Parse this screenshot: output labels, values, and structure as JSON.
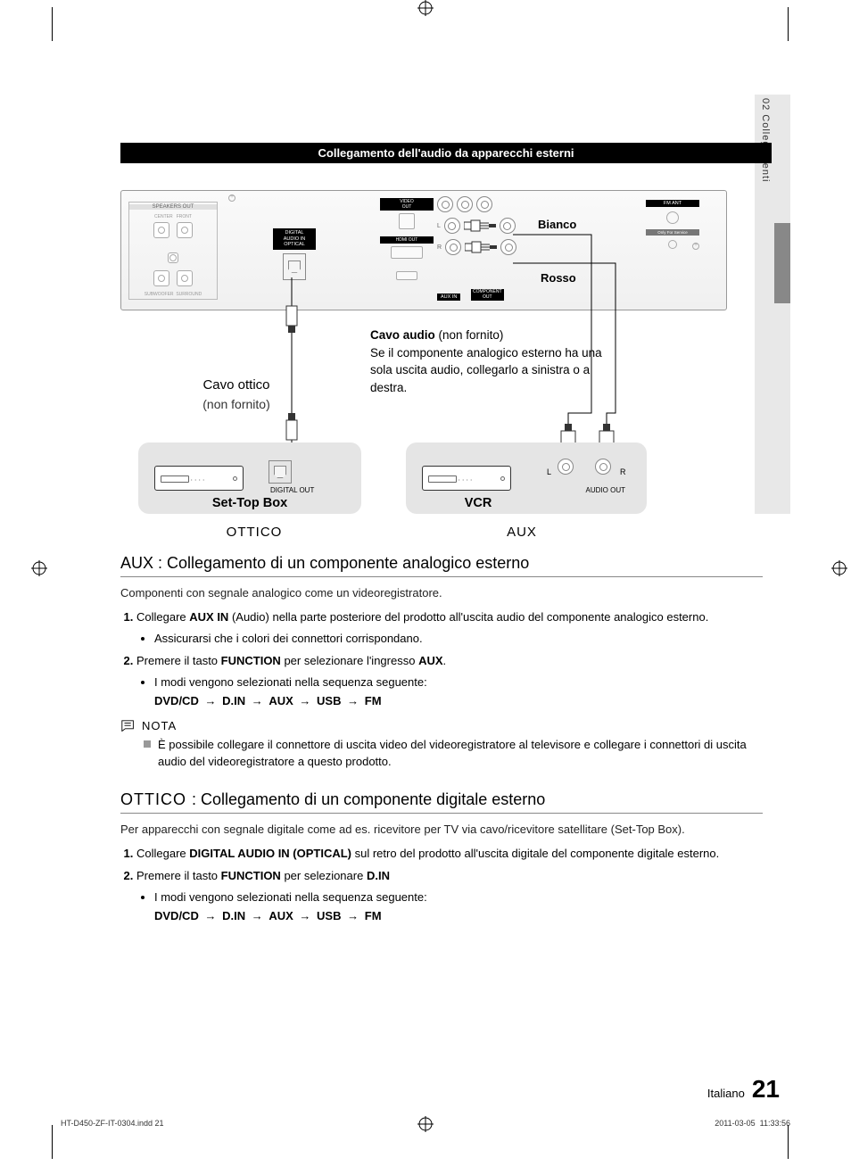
{
  "page": {
    "side_tab": "02  Collegamenti",
    "section_title": "Collegamento dell'audio da apparecchi esterni",
    "footer_lang": "Italiano",
    "footer_num": "21",
    "indd_file": "HT-D450-ZF-IT-0304.indd   21",
    "indd_date": "2011-03-05   ‎ 11:33:56"
  },
  "panel": {
    "speakers_label": "SPEAKERS OUT",
    "sp_center": "CENTER",
    "sp_front": "FRONT",
    "sp_sub": "SUBWOOFER",
    "sp_surr": "SURROUND",
    "optical_label": "DIGITAL\nAUDIO IN",
    "optical_sub": "OPTICAL",
    "video_out": "VIDEO\nOUT",
    "hdmi_out": "HDMI OUT",
    "aux_in": "AUX IN",
    "comp_out": "COMPONENT\nOUT",
    "fm_ant": "FM ANT",
    "service": "Only For Service",
    "color_white": "Bianco",
    "color_red": "Rosso"
  },
  "diagram": {
    "cavo_ottico": "Cavo ottico",
    "not_supplied": "(non fornito)",
    "cavo_audio_title": "Cavo audio",
    "cavo_audio_note": "(non fornito)",
    "cavo_audio_body": "Se il componente analogico esterno ha una sola uscita audio, collegarlo a sinistra o a destra.",
    "stb": "Set-Top Box",
    "vcr": "VCR",
    "digital_out": "DIGITAL OUT",
    "audio_out": "AUDIO OUT",
    "ottico": "OTTICO",
    "aux": "AUX",
    "L": "L",
    "R": "R"
  },
  "aux_section": {
    "heading": "AUX : Collegamento di un componente analogico esterno",
    "intro": "Componenti con segnale analogico come un videoregistratore.",
    "step1_pre": "Collegare ",
    "step1_bold": "AUX IN",
    "step1_post": " (Audio) nella parte posteriore del prodotto all'uscita audio del componente analogico esterno.",
    "step1_bullet": "Assicurarsi che i colori dei connettori corrispondano.",
    "step2_pre": "Premere il tasto ",
    "step2_bold": "FUNCTION",
    "step2_mid": " per selezionare l'ingresso ",
    "step2_bold2": "AUX",
    "step2_post": ".",
    "step2_bullet": "I modi vengono selezionati nella sequenza seguente:",
    "sequence": [
      "DVD/CD",
      "D.IN",
      "AUX",
      "USB",
      "FM"
    ],
    "nota": "NOTA",
    "nota_text": "È possibile collegare il connettore di uscita video del videoregistratore al televisore e collegare i connettori di uscita audio del videoregistratore a questo prodotto."
  },
  "ottico_section": {
    "heading_pre": "OTTICO ",
    "heading_post": ": Collegamento di un componente digitale esterno",
    "intro": "Per apparecchi con segnale digitale come ad es. ricevitore per TV via cavo/ricevitore satellitare (Set-Top Box).",
    "step1_pre": "Collegare ",
    "step1_bold": "DIGITAL AUDIO IN (OPTICAL)",
    "step1_post": " sul retro del prodotto all'uscita digitale del componente digitale esterno.",
    "step2_pre": "Premere il tasto ",
    "step2_bold": "FUNCTION",
    "step2_mid": " per selezionare ",
    "step2_bold2": "D.IN",
    "step2_bullet": "I modi vengono selezionati nella sequenza seguente:",
    "sequence": [
      "DVD/CD",
      "D.IN",
      "AUX",
      "USB",
      "FM"
    ]
  },
  "style": {
    "bar_bg": "#000000",
    "bar_fg": "#ffffff",
    "grey_box": "#e5e5e5",
    "side_tab_bg": "#e8e8e8",
    "side_tab_dark": "#888888",
    "arrow_glyph": "→"
  }
}
